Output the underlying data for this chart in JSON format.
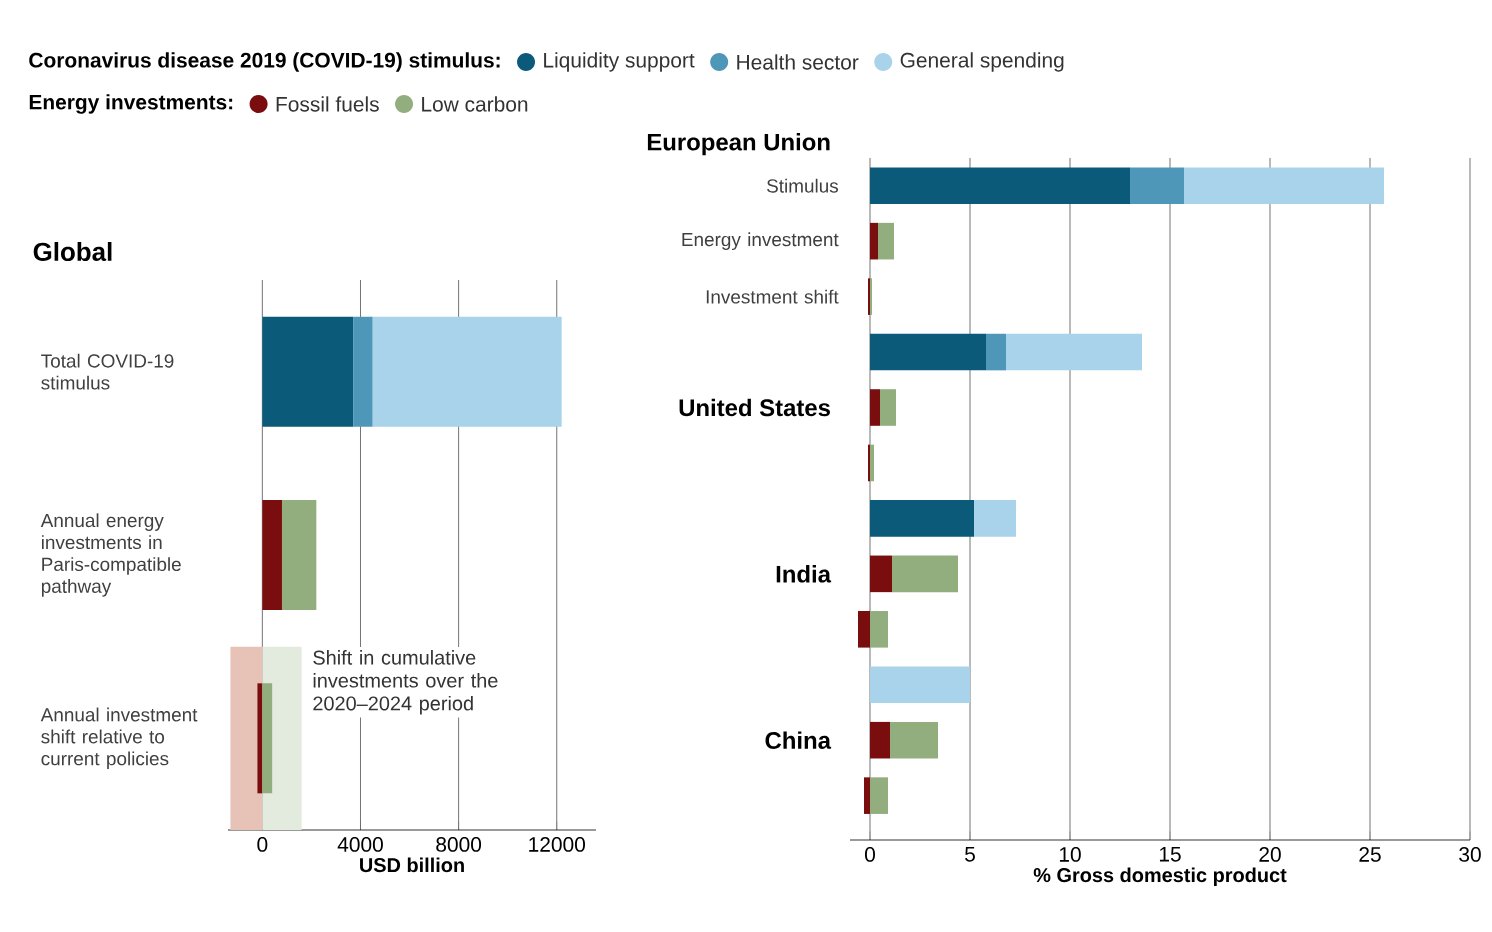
{
  "chart_data": [
    {
      "type": "bar",
      "orientation": "horizontal",
      "stacked": true,
      "title": "Global",
      "xlabel": "USD billion",
      "legend": "top",
      "legend_title": "Coronavirus disease 2019 (COVID-19) stimulus:",
      "grid": "x",
      "annotations": [
        "Energy investments:",
        "Shift in cumulative investments over the 2020–2024 period"
      ],
      "categories": [
        "Total COVID-19 stimulus",
        "Annual energy investments in Paris-compatible pathway",
        "Annual investment shift relative to current policies"
      ],
      "xlim": [
        -1400,
        13600
      ],
      "xticks": [
        0,
        4000,
        8000,
        12000
      ],
      "series": [
        {
          "color": "#e6c3b6",
          "values": [
            null,
            null,
            1300
          ],
          "base": [
            null,
            null,
            -1300
          ]
        },
        {
          "color": "#e2ebde",
          "values": [
            null,
            null,
            -1600
          ],
          "base": [
            null,
            null,
            1600
          ]
        },
        {
          "name": "Liquidity support",
          "color": "#0b5a7a",
          "values": [
            3700,
            null,
            null
          ]
        },
        {
          "name": "Health sector",
          "color": "#4f97b8",
          "values": [
            800,
            null,
            null
          ]
        },
        {
          "name": "General spending",
          "color": "#a9d3ea",
          "values": [
            7700,
            null,
            null
          ]
        },
        {
          "name": "Fossil fuels",
          "color": "#7a0d0d",
          "values": [
            null,
            800,
            -200
          ]
        },
        {
          "name": "Low carbon",
          "color": "#92ad7e",
          "values": [
            null,
            1400,
            400
          ]
        }
      ]
    },
    {
      "type": "bar",
      "orientation": "horizontal",
      "stacked": true,
      "xlabel": "% Gross domestic product",
      "grid": "x",
      "annotations": [
        "European Union",
        "United States",
        "India",
        "China"
      ],
      "categories": [
        "Stimulus",
        "Energy investment",
        "Investment shift",
        null,
        null,
        null,
        null,
        null,
        null,
        null,
        null,
        null
      ],
      "xlim": [
        -1,
        30
      ],
      "xticks": [
        0,
        5,
        10,
        15,
        20,
        25,
        30
      ],
      "series": [
        {
          "color": "#0b5a7a",
          "values": [
            13.0,
            null,
            null,
            5.8,
            null,
            null,
            5.2,
            null,
            null,
            null,
            null,
            null
          ]
        },
        {
          "color": "#4f97b8",
          "values": [
            2.7,
            null,
            null,
            1.0,
            null,
            null,
            null,
            null,
            null,
            null,
            null,
            null
          ]
        },
        {
          "color": "#a9d3ea",
          "values": [
            10.0,
            null,
            null,
            6.8,
            null,
            null,
            2.1,
            null,
            null,
            5.0,
            null,
            null
          ]
        },
        {
          "color": "#7a0d0d",
          "values": [
            null,
            0.4,
            -0.1,
            null,
            0.5,
            -0.1,
            null,
            1.1,
            -0.6,
            null,
            1.0,
            -0.3
          ]
        },
        {
          "color": "#92ad7e",
          "values": [
            null,
            0.8,
            0.1,
            null,
            0.8,
            0.2,
            null,
            3.3,
            0.9,
            null,
            2.4,
            0.9
          ]
        }
      ]
    }
  ]
}
